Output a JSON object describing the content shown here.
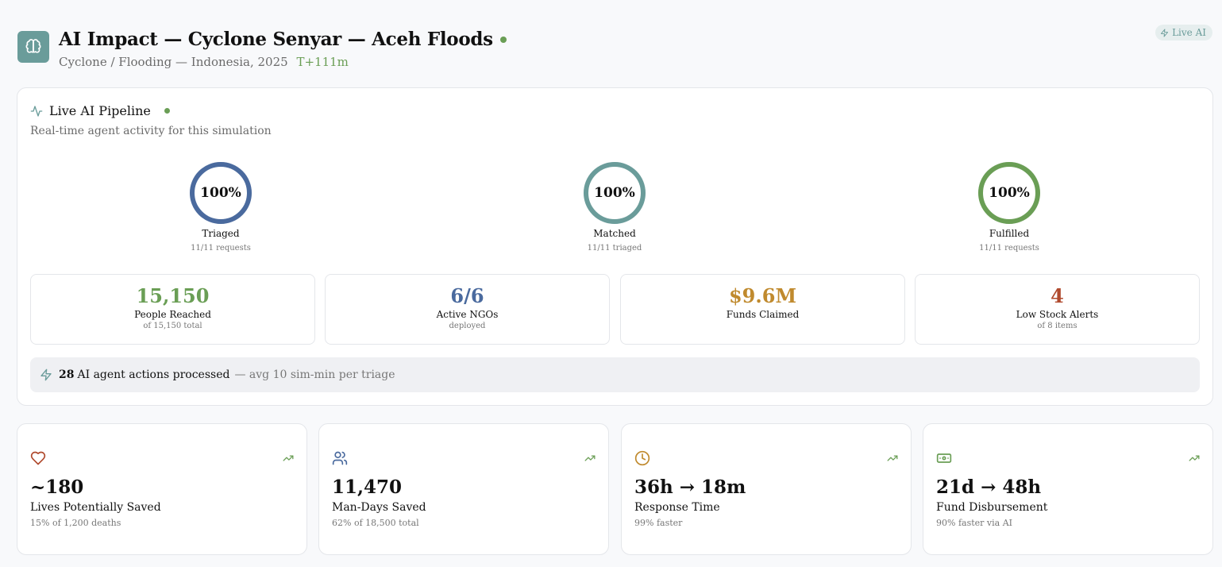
{
  "header": {
    "title": "AI Impact — Cyclone Senyar — Aceh Floods",
    "subtitle": "Cyclone / Flooding — Indonesia, 2025",
    "time": "T+111m",
    "badge": "Live AI",
    "logo_icon": "brain-icon"
  },
  "pipeline": {
    "title": "Live AI Pipeline",
    "subtitle": "Real-time agent activity for this simulation",
    "gauges": [
      {
        "pct_text": "100%",
        "value": 1.0,
        "label": "Triaged",
        "sub": "11/11 requests",
        "color": "#4a6a9e"
      },
      {
        "pct_text": "100%",
        "value": 1.0,
        "label": "Matched",
        "sub": "11/11 triaged",
        "color": "#6a9c9a"
      },
      {
        "pct_text": "100%",
        "value": 1.0,
        "label": "Fulfilled",
        "sub": "11/11 requests",
        "color": "#6a9e55"
      }
    ],
    "stats": [
      {
        "value": "15,150",
        "label": "People Reached",
        "sub": "of 15,150 total",
        "color": "#6a9e55"
      },
      {
        "value": "6/6",
        "label": "Active NGOs",
        "sub": "deployed",
        "color": "#4a6a9e"
      },
      {
        "value": "$9.6M",
        "label": "Funds Claimed",
        "sub": "",
        "color": "#c08a2e"
      },
      {
        "value": "4",
        "label": "Low Stock Alerts",
        "sub": "of 8 items",
        "color": "#b04a2e"
      }
    ],
    "actions": {
      "count": "28",
      "text": "AI agent actions processed",
      "avg": "— avg 10 sim-min per triage"
    }
  },
  "impact_cards": [
    {
      "icon": "heart-icon",
      "value": "~180",
      "label": "Lives Potentially Saved",
      "sub": "15% of 1,200 deaths",
      "color": "#b04a2e"
    },
    {
      "icon": "users-icon",
      "value": "11,470",
      "label": "Man-Days Saved",
      "sub": "62% of 18,500 total",
      "color": "#4a6a9e"
    },
    {
      "icon": "clock-icon",
      "value": "36h → 18m",
      "label": "Response Time",
      "sub": "99% faster",
      "color": "#c08a2e"
    },
    {
      "icon": "banknote-icon",
      "value": "21d → 48h",
      "label": "Fund Disbursement",
      "sub": "90% faster via AI",
      "color": "#6a9e55"
    }
  ]
}
